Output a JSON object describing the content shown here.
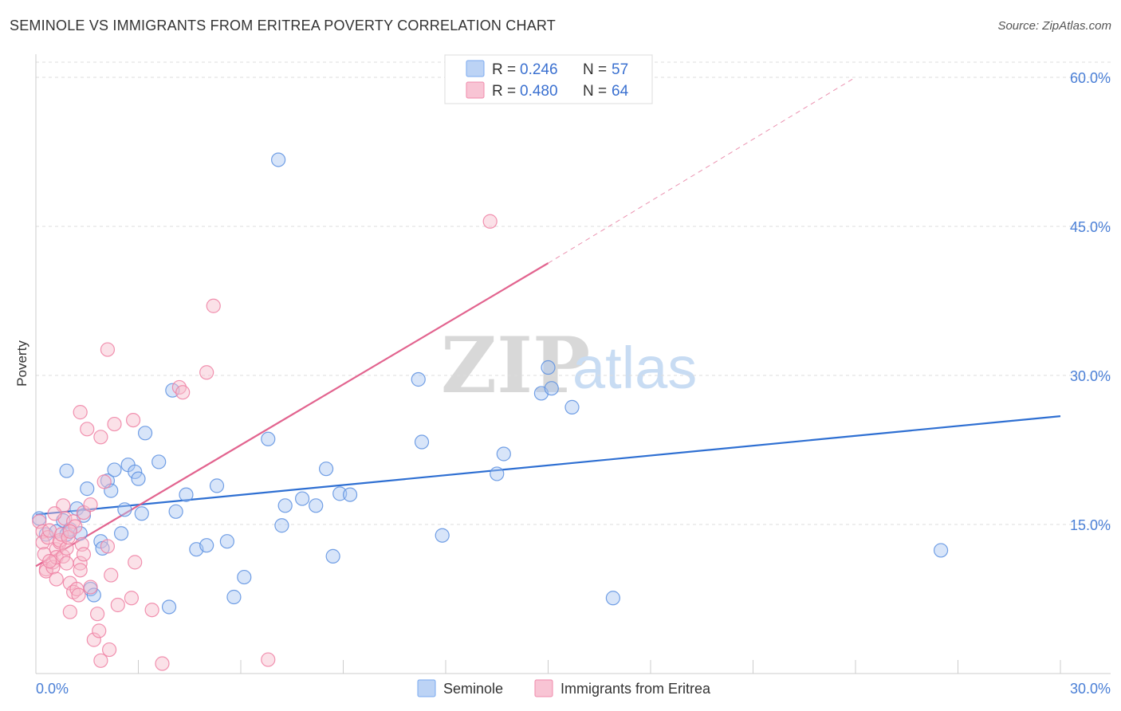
{
  "title": "SEMINOLE VS IMMIGRANTS FROM ERITREA POVERTY CORRELATION CHART",
  "source": "Source: ZipAtlas.com",
  "watermark": {
    "zip": "ZIP",
    "atlas": "atlas"
  },
  "legend_top": [
    {
      "r_label": "R =",
      "r_value": "0.246",
      "n_label": "N =",
      "n_value": "57",
      "color": "#7aaaf0",
      "fill": "#bcd3f5"
    },
    {
      "r_label": "R =",
      "r_value": "0.480",
      "n_label": "N =",
      "n_value": "64",
      "color": "#f08aab",
      "fill": "#f8c4d4"
    }
  ],
  "legend_bottom": [
    "Seminole",
    "Immigrants from Eritrea"
  ],
  "chart_data": {
    "type": "scatter",
    "title": "SEMINOLE VS IMMIGRANTS FROM ERITREA POVERTY CORRELATION CHART",
    "xlabel": "",
    "ylabel": "Poverty",
    "xlim": [
      0,
      30
    ],
    "ylim": [
      0,
      60
    ],
    "x_tick_labels": [
      "0.0%",
      "30.0%"
    ],
    "y_ticks": [
      15,
      30,
      45,
      60
    ],
    "y_tick_labels": [
      "15.0%",
      "30.0%",
      "45.0%",
      "60.0%"
    ],
    "grid": true,
    "legend": "top-center",
    "series": [
      {
        "name": "Seminole",
        "color": "#5b8fe0",
        "fill": "#a9c6f2",
        "trend_color": "#2e6fd2",
        "trend": {
          "x0": 0.0,
          "y0": 16.0,
          "x1": 30.0,
          "y1": 25.9
        },
        "points": [
          [
            0.3,
            14.0
          ],
          [
            0.6,
            14.3
          ],
          [
            0.8,
            15.4
          ],
          [
            0.9,
            14.0
          ],
          [
            1.0,
            14.5
          ],
          [
            1.2,
            16.6
          ],
          [
            1.3,
            14.1
          ],
          [
            1.4,
            15.9
          ],
          [
            0.9,
            20.4
          ],
          [
            1.5,
            18.6
          ],
          [
            1.6,
            8.5
          ],
          [
            1.7,
            7.9
          ],
          [
            1.9,
            13.3
          ],
          [
            1.95,
            12.6
          ],
          [
            2.1,
            19.4
          ],
          [
            2.2,
            18.4
          ],
          [
            2.3,
            20.5
          ],
          [
            2.5,
            14.1
          ],
          [
            2.6,
            16.5
          ],
          [
            2.7,
            21.0
          ],
          [
            2.9,
            20.3
          ],
          [
            3.0,
            19.6
          ],
          [
            3.1,
            16.1
          ],
          [
            3.2,
            24.2
          ],
          [
            3.6,
            21.3
          ],
          [
            3.9,
            6.7
          ],
          [
            4.0,
            28.5
          ],
          [
            4.1,
            16.3
          ],
          [
            4.4,
            18.0
          ],
          [
            4.7,
            12.5
          ],
          [
            5.0,
            12.9
          ],
          [
            5.3,
            18.9
          ],
          [
            5.6,
            13.3
          ],
          [
            5.8,
            7.7
          ],
          [
            6.1,
            9.7
          ],
          [
            6.8,
            23.6
          ],
          [
            7.1,
            51.7
          ],
          [
            7.2,
            14.9
          ],
          [
            7.3,
            16.9
          ],
          [
            7.8,
            17.6
          ],
          [
            8.2,
            16.9
          ],
          [
            8.5,
            20.6
          ],
          [
            8.7,
            11.8
          ],
          [
            8.9,
            18.1
          ],
          [
            9.2,
            18.0
          ],
          [
            11.2,
            29.6
          ],
          [
            11.3,
            23.3
          ],
          [
            11.9,
            13.9
          ],
          [
            13.5,
            20.1
          ],
          [
            13.7,
            22.1
          ],
          [
            14.8,
            28.2
          ],
          [
            15.0,
            30.8
          ],
          [
            15.1,
            28.7
          ],
          [
            15.7,
            26.8
          ],
          [
            16.9,
            7.6
          ],
          [
            26.5,
            12.4
          ],
          [
            0.1,
            15.6
          ]
        ]
      },
      {
        "name": "Immigrants from Eritrea",
        "color": "#ee7fa2",
        "fill": "#f6bccd",
        "trend_color": "#e2648f",
        "trend": {
          "x0": 0.0,
          "y0": 10.8,
          "x1": 15.0,
          "y1": 41.3
        },
        "trend_dashed_to": {
          "x": 24.0,
          "y": 60.0
        },
        "points": [
          [
            0.1,
            15.3
          ],
          [
            0.2,
            14.3
          ],
          [
            0.2,
            13.2
          ],
          [
            0.25,
            12.0
          ],
          [
            0.3,
            10.5
          ],
          [
            0.3,
            10.3
          ],
          [
            0.35,
            13.7
          ],
          [
            0.4,
            14.4
          ],
          [
            0.5,
            11.2
          ],
          [
            0.5,
            10.7
          ],
          [
            0.6,
            12.5
          ],
          [
            0.6,
            11.7
          ],
          [
            0.7,
            13.2
          ],
          [
            0.7,
            13.4
          ],
          [
            0.75,
            14.0
          ],
          [
            0.8,
            16.9
          ],
          [
            0.8,
            11.8
          ],
          [
            0.85,
            15.6
          ],
          [
            0.9,
            12.6
          ],
          [
            0.9,
            11.1
          ],
          [
            0.95,
            13.7
          ],
          [
            1.0,
            9.1
          ],
          [
            1.0,
            6.2
          ],
          [
            1.1,
            15.3
          ],
          [
            1.1,
            8.2
          ],
          [
            1.15,
            14.8
          ],
          [
            1.2,
            8.5
          ],
          [
            1.25,
            7.9
          ],
          [
            1.3,
            11.1
          ],
          [
            1.3,
            10.4
          ],
          [
            1.35,
            13.0
          ],
          [
            1.4,
            12.0
          ],
          [
            1.4,
            16.2
          ],
          [
            1.5,
            24.6
          ],
          [
            1.6,
            17.0
          ],
          [
            1.6,
            8.7
          ],
          [
            1.7,
            3.4
          ],
          [
            1.8,
            6.0
          ],
          [
            1.85,
            4.3
          ],
          [
            1.9,
            1.3
          ],
          [
            1.9,
            23.8
          ],
          [
            2.0,
            19.3
          ],
          [
            2.1,
            32.6
          ],
          [
            2.1,
            12.8
          ],
          [
            2.15,
            2.4
          ],
          [
            2.2,
            9.9
          ],
          [
            2.3,
            25.1
          ],
          [
            2.4,
            6.9
          ],
          [
            2.8,
            7.6
          ],
          [
            2.85,
            25.5
          ],
          [
            2.9,
            11.2
          ],
          [
            3.4,
            6.4
          ],
          [
            3.7,
            1.0
          ],
          [
            4.2,
            28.8
          ],
          [
            4.3,
            28.3
          ],
          [
            5.0,
            30.3
          ],
          [
            5.2,
            37.0
          ],
          [
            6.8,
            1.4
          ],
          [
            13.3,
            45.5
          ],
          [
            1.3,
            26.3
          ],
          [
            0.4,
            11.3
          ],
          [
            0.55,
            16.1
          ],
          [
            1.0,
            14.3
          ],
          [
            0.6,
            9.5
          ]
        ]
      }
    ]
  }
}
